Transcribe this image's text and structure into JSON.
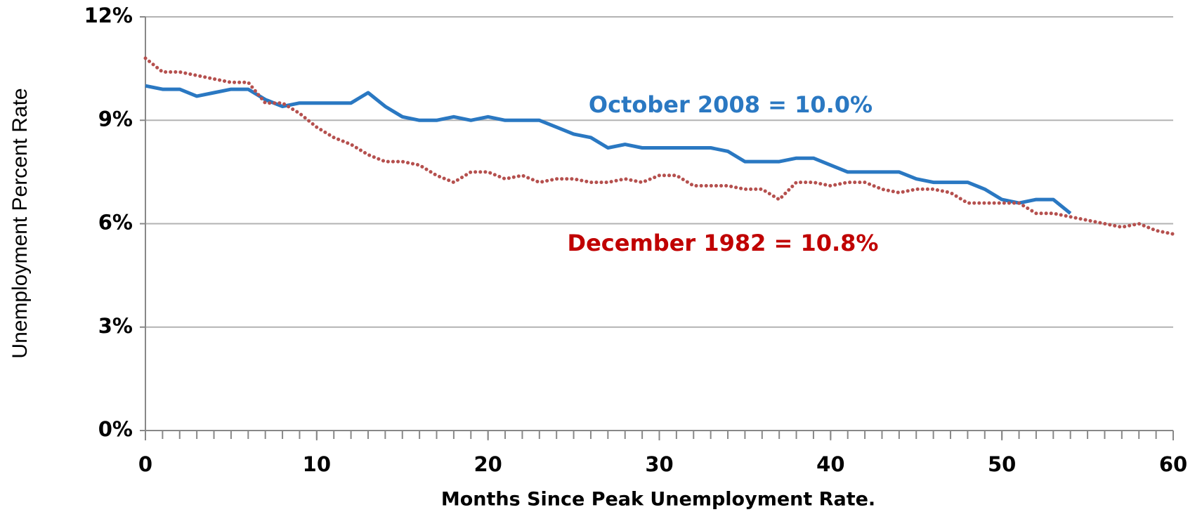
{
  "chart_data": {
    "type": "line",
    "y_axis_label": "Unemployment Percent Rate",
    "x_axis_label": "Months Since Peak Unemployment Rate.",
    "annotations": [
      {
        "text": "October 2008 = 10.0%",
        "color": "#2a78c2"
      },
      {
        "text": "December 1982 = 10.8%",
        "color": "#c00000"
      }
    ],
    "x": [
      0,
      1,
      2,
      3,
      4,
      5,
      6,
      7,
      8,
      9,
      10,
      11,
      12,
      13,
      14,
      15,
      16,
      17,
      18,
      19,
      20,
      21,
      22,
      23,
      24,
      25,
      26,
      27,
      28,
      29,
      30,
      31,
      32,
      33,
      34,
      35,
      36,
      37,
      38,
      39,
      40,
      41,
      42,
      43,
      44,
      45,
      46,
      47,
      48,
      49,
      50,
      51,
      52,
      53,
      54,
      55,
      56,
      57,
      58,
      59,
      60
    ],
    "series": [
      {
        "name": "October 2008",
        "color": "#2a78c2",
        "style": "solid",
        "values": [
          10.0,
          9.9,
          9.9,
          9.7,
          9.8,
          9.9,
          9.9,
          9.6,
          9.4,
          9.5,
          9.5,
          9.5,
          9.5,
          9.8,
          9.4,
          9.1,
          9.0,
          9.0,
          9.1,
          9.0,
          9.1,
          9.0,
          9.0,
          9.0,
          8.8,
          8.6,
          8.5,
          8.2,
          8.3,
          8.2,
          8.2,
          8.2,
          8.2,
          8.2,
          8.1,
          7.8,
          7.8,
          7.8,
          7.9,
          7.9,
          7.7,
          7.5,
          7.5,
          7.5,
          7.5,
          7.3,
          7.2,
          7.2,
          7.2,
          7.0,
          6.7,
          6.6,
          6.7,
          6.7,
          6.3,
          null,
          null,
          null,
          null,
          null,
          null
        ]
      },
      {
        "name": "December 1982",
        "color": "#b5504e",
        "style": "dotted",
        "values": [
          10.8,
          10.4,
          10.4,
          10.3,
          10.2,
          10.1,
          10.1,
          9.5,
          9.5,
          9.2,
          8.8,
          8.5,
          8.3,
          8.0,
          7.8,
          7.8,
          7.7,
          7.4,
          7.2,
          7.5,
          7.5,
          7.3,
          7.4,
          7.2,
          7.3,
          7.3,
          7.2,
          7.2,
          7.3,
          7.2,
          7.4,
          7.4,
          7.1,
          7.1,
          7.1,
          7.0,
          7.0,
          6.7,
          7.2,
          7.2,
          7.1,
          7.2,
          7.2,
          7.0,
          6.9,
          7.0,
          7.0,
          6.9,
          6.6,
          6.6,
          6.6,
          6.6,
          6.3,
          6.3,
          6.2,
          6.1,
          6.0,
          5.9,
          6.0,
          5.8,
          5.7
        ]
      }
    ],
    "xlim": [
      0,
      60
    ],
    "xticks": [
      0,
      10,
      20,
      30,
      40,
      50,
      60
    ],
    "ylim": [
      0,
      12
    ],
    "yticks": [
      {
        "value": 0,
        "label": "0%"
      },
      {
        "value": 3,
        "label": "3%"
      },
      {
        "value": 6,
        "label": "6%"
      },
      {
        "value": 9,
        "label": "9%"
      },
      {
        "value": 12,
        "label": "12%"
      }
    ],
    "grid": true
  }
}
